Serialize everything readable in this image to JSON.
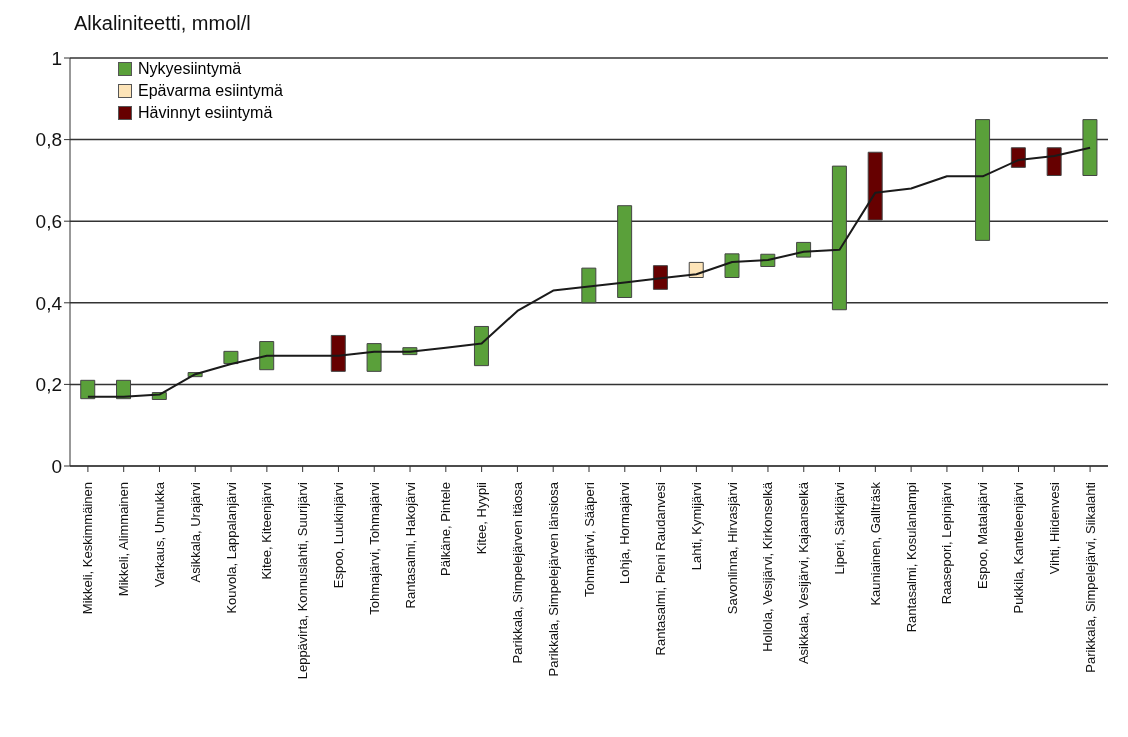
{
  "chart_data": {
    "type": "bar",
    "ylabel": "Alkaliniteetti, mmol/l",
    "categories": [
      "Mikkeli, Keskimmäinen",
      "Mikkeli, Alimmainen",
      "Varkaus, Unnukka",
      "Asikkala, Urajärvi",
      "Kouvola, Lappalanjärvi",
      "Kitee, Kiteenjärvi",
      "Leppävirta, Konnuslahti, Suurijärvi",
      "Espoo, Luukinjärvi",
      "Tohmajärvi, Tohmajärvi",
      "Rantasalmi, Hakojärvi",
      "Pälkäne, Pintele",
      "Kitee, Hyypii",
      "Parikkala, Simpelejärven itäosa",
      "Parikkala, Simpelejärven länsiosa",
      "Tohmajärvi, Sääperi",
      "Lohja, Hormajärvi",
      "Rantasalmi, Pieni Raudanvesi",
      "Lahti, Kymijärvi",
      "Savonlinna, Hirvasjärvi",
      "Hollola, Vesijärvi, Kirkonselkä",
      "Asikkala, Vesijärvi, Kajaanselkä",
      "Liperi, Särkijärvi",
      "Kauniainen, Gallträsk",
      "Rantasalmi, Kosulanlampi",
      "Raasepori, Lepinjärvi",
      "Espoo, Matalajärvi",
      "Pukkila, Kanteleenjärvi",
      "Vihti, Hiidenvesi",
      "Parikkala, Simpelejärvi, Siikalahti"
    ],
    "series": [
      {
        "name": "Nykyesiintymä",
        "color": "#5aa03a",
        "base": [
          0.165,
          0.165,
          0.163,
          0.219,
          0.251,
          0.236,
          null,
          null,
          0.232,
          0.273,
          null,
          0.246,
          null,
          null,
          0.4,
          0.413,
          null,
          null,
          0.462,
          0.489,
          0.512,
          0.383,
          null,
          null,
          null,
          0.553,
          null,
          null,
          0.712
        ],
        "values": [
          0.045,
          0.045,
          0.017,
          0.01,
          0.03,
          0.069,
          null,
          null,
          0.068,
          0.017,
          null,
          0.096,
          null,
          null,
          0.085,
          0.225,
          null,
          null,
          0.058,
          0.03,
          0.036,
          0.352,
          null,
          null,
          null,
          0.296,
          null,
          null,
          0.137
        ]
      },
      {
        "name": "Epävarma esiintymä",
        "color": "#fde4b8",
        "base": [
          null,
          null,
          null,
          null,
          null,
          null,
          null,
          null,
          null,
          null,
          null,
          null,
          null,
          null,
          null,
          null,
          null,
          0.462,
          null,
          null,
          null,
          null,
          null,
          null,
          null,
          null,
          null,
          null,
          null
        ],
        "values": [
          null,
          null,
          null,
          null,
          null,
          null,
          null,
          null,
          null,
          null,
          null,
          null,
          null,
          null,
          null,
          null,
          null,
          0.037,
          null,
          null,
          null,
          null,
          null,
          null,
          null,
          null,
          null,
          null,
          null
        ]
      },
      {
        "name": "Hävinnyt esiintymä",
        "color": "#660000",
        "base": [
          null,
          null,
          null,
          null,
          null,
          null,
          null,
          0.232,
          null,
          null,
          null,
          null,
          null,
          null,
          null,
          null,
          0.433,
          null,
          null,
          null,
          null,
          null,
          0.603,
          null,
          null,
          null,
          0.732,
          0.712,
          null
        ],
        "values": [
          null,
          null,
          null,
          null,
          null,
          null,
          null,
          0.088,
          null,
          null,
          null,
          null,
          null,
          null,
          null,
          null,
          0.058,
          null,
          null,
          null,
          null,
          null,
          0.166,
          null,
          null,
          null,
          0.048,
          0.068,
          null
        ]
      },
      {
        "type": "line",
        "color": "#1a1a1a",
        "values": [
          0.17,
          0.17,
          0.175,
          0.225,
          0.25,
          0.27,
          0.27,
          0.27,
          0.28,
          0.28,
          0.29,
          0.3,
          0.38,
          0.43,
          0.44,
          0.45,
          0.46,
          0.47,
          0.5,
          0.505,
          0.525,
          0.53,
          0.67,
          0.68,
          0.71,
          0.71,
          0.75,
          0.76,
          0.78
        ]
      }
    ],
    "ylim": [
      0,
      1
    ],
    "yticks": [
      0,
      {
        "value": 0.2,
        "label": "0,2"
      },
      {
        "value": 0.4,
        "label": "0,4"
      },
      {
        "value": 0.6,
        "label": "0,6"
      },
      {
        "value": 0.8,
        "label": "0,8"
      },
      1
    ],
    "grid": "y",
    "legend": "top left"
  }
}
